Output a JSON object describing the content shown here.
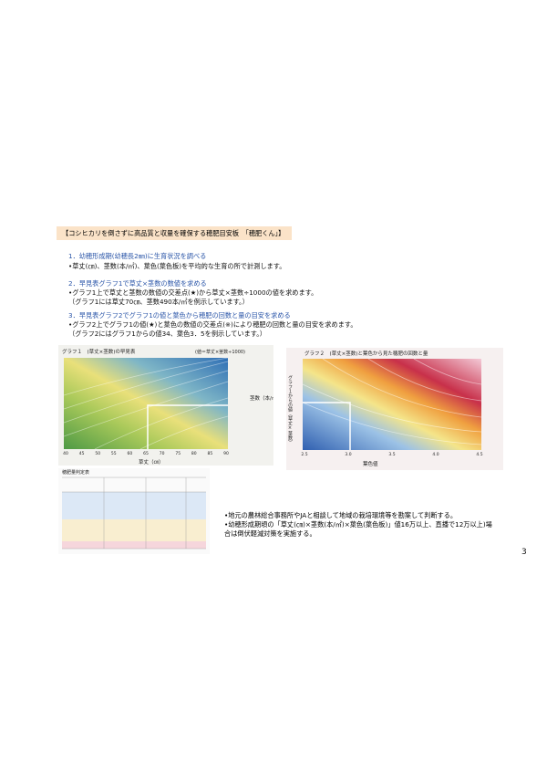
{
  "header": {
    "title": "【コシヒカリを倒さずに高品質と収量を確保する穂肥目安板　「穂肥くん」】"
  },
  "steps": [
    {
      "heading": "1．幼穂形成期(幼穂長2㎜)に生育状況を調べる",
      "lines": [
        "•草丈(㎝)、茎数(本/㎡)、葉色(葉色板)を平均的な生育の所で計測します。"
      ]
    },
    {
      "heading": "2．早見表グラフ1で草丈×茎数の数値を求める",
      "lines": [
        "•グラフ1上で草丈と茎数の数値の交差点(★)から草丈×茎数÷1000の値を求めます。",
        "（グラフ1には草丈70㎝、茎数490本/㎡を例示しています。）"
      ]
    },
    {
      "heading": "3．早見表グラフ2でグラフ1の値と葉色から穂肥の回数と量の目安を求める",
      "lines": [
        "•グラフ2上でグラフ1の値(★)と葉色の数値の交差点(※)により穂肥の回数と量の目安を求めます。",
        "（グラフ2にはグラフ1からの値34、葉色3．5を例示しています。）"
      ]
    }
  ],
  "figures": {
    "graph1": {
      "title": "グラフ１　(草丈×茎数)の早見表",
      "note": "(値＝草丈×茎数÷1000)",
      "x_label": "草丈（㎝）",
      "y_label": "茎数（本/㎡）",
      "x_ticks": [
        "40",
        "45",
        "50",
        "55",
        "60",
        "65",
        "70",
        "75",
        "80",
        "85",
        "90"
      ]
    },
    "graph2": {
      "title": "グラフ２　(草丈×茎数)と葉色から見た穂肥の回数と量",
      "y_label": "グラフ１からの値（草丈×茎数）",
      "x_label": "葉色値",
      "x_ticks": [
        "2.5",
        "3.0",
        "3.5",
        "4.0",
        "4.5"
      ]
    },
    "table": {
      "title": "穂肥量判定表"
    }
  },
  "notes": [
    "•地元の農林総合事務所やJAと相談して地域の栽培環境等を勘案して判断する。",
    "•幼穂形成期頃の「草丈(㎝)×茎数(本/㎡)×葉色(葉色板)」値16万以上、直播で12万以上)場合は倒伏軽減対策を実施する。"
  ],
  "footer": {
    "page_number": "3"
  }
}
